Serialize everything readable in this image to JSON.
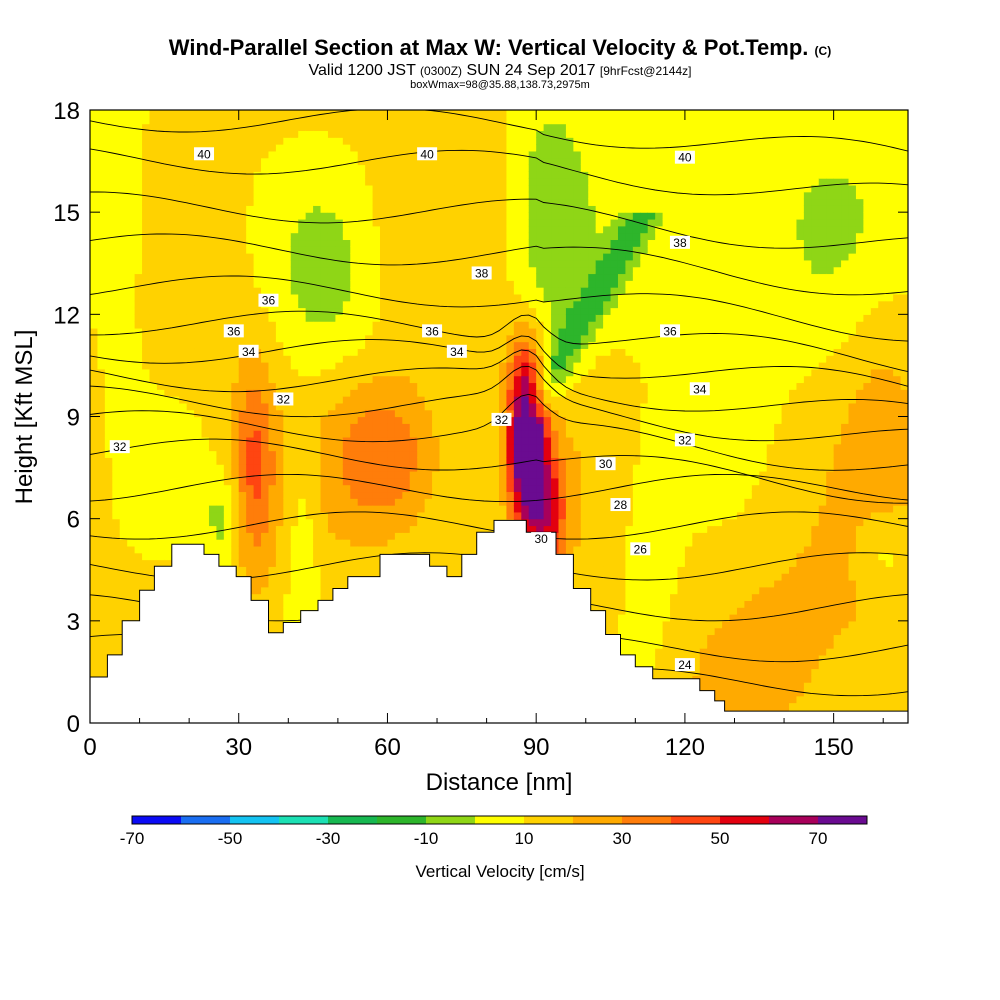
{
  "title": {
    "main": "Wind-Parallel Section at Max W: Vertical Velocity & Pot.Temp.",
    "copyright": "(C)",
    "valid_prefix": "Valid 1200 JST",
    "valid_utc": "(0300Z)",
    "valid_date": "SUN 24 Sep 2017",
    "forecast": "[9hrFcst@2144z]",
    "box_info": "boxWmax=98@35.88,138.73,2975m"
  },
  "colorbar": {
    "title": "Vertical Velocity [cm/s]",
    "tick_labels": [
      "-70",
      "-50",
      "-30",
      "-10",
      "10",
      "30",
      "50",
      "70"
    ],
    "colors": [
      "#0b0bf5",
      "#1a6ef2",
      "#14c3f2",
      "#1ce0b4",
      "#17b851",
      "#2db52b",
      "#8fd616",
      "#ffff00",
      "#ffd200",
      "#ffaa00",
      "#ff7d0a",
      "#ff4511",
      "#e3000f",
      "#a8005a",
      "#6a0b91"
    ]
  },
  "chart_data": {
    "type": "heatmap",
    "xlabel": "Distance [nm]",
    "ylabel": "Height [Kft MSL]",
    "xlim": [
      0,
      165
    ],
    "ylim": [
      0,
      18
    ],
    "x_ticks": [
      "0",
      "30",
      "60",
      "90",
      "120",
      "150"
    ],
    "y_ticks": [
      "0",
      "3",
      "6",
      "9",
      "12",
      "15",
      "18"
    ],
    "x_tick_values": [
      0,
      30,
      60,
      90,
      120,
      150
    ],
    "y_tick_values": [
      0,
      3,
      6,
      9,
      12,
      15,
      18
    ],
    "terrain": [
      [
        0,
        1.35
      ],
      [
        3.5,
        1.35
      ],
      [
        3.5,
        2
      ],
      [
        6.5,
        2
      ],
      [
        6.5,
        3
      ],
      [
        10,
        3
      ],
      [
        10,
        3.9
      ],
      [
        13,
        3.9
      ],
      [
        13,
        4.6
      ],
      [
        16.5,
        4.6
      ],
      [
        16.5,
        5.25
      ],
      [
        23,
        5.25
      ],
      [
        23,
        4.95
      ],
      [
        26,
        4.95
      ],
      [
        26,
        4.6
      ],
      [
        29.5,
        4.6
      ],
      [
        29.5,
        4.3
      ],
      [
        32.5,
        4.3
      ],
      [
        32.5,
        3.6
      ],
      [
        36,
        3.6
      ],
      [
        36,
        2.65
      ],
      [
        39,
        2.65
      ],
      [
        39,
        2.95
      ],
      [
        42.5,
        2.95
      ],
      [
        42.5,
        3.3
      ],
      [
        46,
        3.3
      ],
      [
        46,
        3.6
      ],
      [
        49,
        3.6
      ],
      [
        49,
        3.95
      ],
      [
        52,
        3.95
      ],
      [
        52,
        4.3
      ],
      [
        58.5,
        4.3
      ],
      [
        58.5,
        4.95
      ],
      [
        68.5,
        4.95
      ],
      [
        68.5,
        4.6
      ],
      [
        72,
        4.6
      ],
      [
        72,
        4.3
      ],
      [
        75,
        4.3
      ],
      [
        75,
        4.95
      ],
      [
        78,
        4.95
      ],
      [
        78,
        5.6
      ],
      [
        81.5,
        5.6
      ],
      [
        81.5,
        5.95
      ],
      [
        88,
        5.95
      ],
      [
        88,
        5.6
      ],
      [
        94,
        5.6
      ],
      [
        94,
        4.95
      ],
      [
        97.5,
        4.95
      ],
      [
        97.5,
        3.95
      ],
      [
        101,
        3.95
      ],
      [
        101,
        3.3
      ],
      [
        104,
        3.3
      ],
      [
        104,
        2.6
      ],
      [
        107,
        2.6
      ],
      [
        107,
        2
      ],
      [
        110,
        2
      ],
      [
        110,
        1.65
      ],
      [
        113.5,
        1.65
      ],
      [
        113.5,
        1.3
      ],
      [
        123,
        1.3
      ],
      [
        123,
        0.95
      ],
      [
        126,
        0.95
      ],
      [
        126,
        0.65
      ],
      [
        128,
        0.65
      ],
      [
        128,
        0.35
      ],
      [
        165,
        0.35
      ],
      [
        165,
        0
      ],
      [
        0,
        0
      ]
    ],
    "theta_labels": [
      {
        "text": "40",
        "x": 23,
        "y": 16.7
      },
      {
        "text": "40",
        "x": 68,
        "y": 16.7
      },
      {
        "text": "40",
        "x": 120,
        "y": 16.6
      },
      {
        "text": "38",
        "x": 79,
        "y": 13.2
      },
      {
        "text": "38",
        "x": 119,
        "y": 14.1
      },
      {
        "text": "36",
        "x": 36,
        "y": 12.4
      },
      {
        "text": "36",
        "x": 29,
        "y": 11.5
      },
      {
        "text": "36",
        "x": 69,
        "y": 11.5
      },
      {
        "text": "36",
        "x": 117,
        "y": 11.5
      },
      {
        "text": "34",
        "x": 32,
        "y": 10.9
      },
      {
        "text": "34",
        "x": 74,
        "y": 10.9
      },
      {
        "text": "34",
        "x": 123,
        "y": 9.8
      },
      {
        "text": "32",
        "x": 39,
        "y": 9.5
      },
      {
        "text": "32",
        "x": 6,
        "y": 8.1
      },
      {
        "text": "32",
        "x": 83,
        "y": 8.9
      },
      {
        "text": "32",
        "x": 120,
        "y": 8.3
      },
      {
        "text": "30",
        "x": 104,
        "y": 7.6
      },
      {
        "text": "30",
        "x": 91,
        "y": 5.4
      },
      {
        "text": "28",
        "x": 107,
        "y": 6.4
      },
      {
        "text": "26",
        "x": 111,
        "y": 5.1
      },
      {
        "text": "24",
        "x": 120,
        "y": 1.7
      }
    ]
  }
}
